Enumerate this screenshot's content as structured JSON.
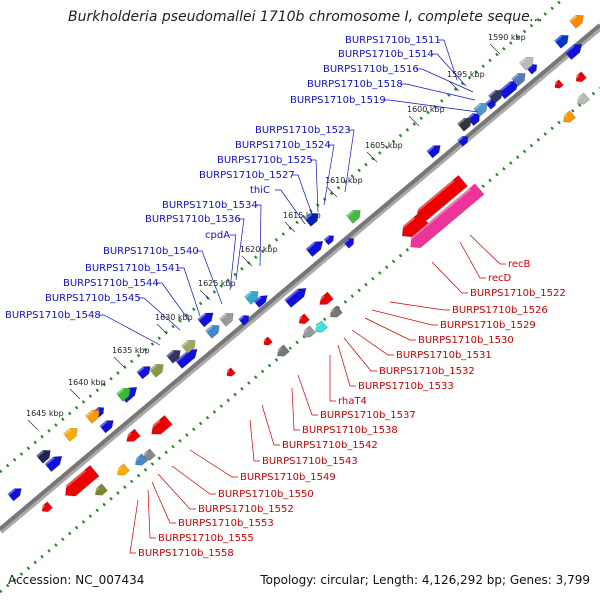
{
  "title": "Burkholderia pseudomallei 1710b chromosome I, complete seque...",
  "footer": {
    "accession": "Accession: NC_007434",
    "stats": "Topology: circular; Length: 4,126,292 bp; Genes: 3,799"
  },
  "colors": {
    "forward_label": "#1010cc",
    "reverse_label": "#cc0000",
    "backbone": "#777777",
    "tick": "#228822"
  },
  "kbp_marks": [
    "1590 kbp",
    "1595 kbp",
    "1600 kbp",
    "1605 kbp",
    "1610 kbp",
    "1615 kbp",
    "1620 kbp",
    "1625 kbp",
    "1630 kbp",
    "1635 kbp",
    "1640 kbp",
    "1645 kbp"
  ],
  "forward_genes": [
    "BURPS1710b_1511",
    "BURPS1710b_1514",
    "BURPS1710b_1516",
    "BURPS1710b_1518",
    "BURPS1710b_1519",
    "BURPS1710b_1523",
    "BURPS1710b_1524",
    "BURPS1710b_1525",
    "BURPS1710b_1527",
    "thiC",
    "BURPS1710b_1534",
    "BURPS1710b_1536",
    "cpdA",
    "BURPS1710b_1540",
    "BURPS1710b_1541",
    "BURPS1710b_1544",
    "BURPS1710b_1545",
    "BURPS1710b_1548"
  ],
  "reverse_genes": [
    "recB",
    "recD",
    "BURPS1710b_1522",
    "BURPS1710b_1526",
    "BURPS1710b_1529",
    "BURPS1710b_1530",
    "BURPS1710b_1531",
    "BURPS1710b_1532",
    "BURPS1710b_1533",
    "rhaT4",
    "BURPS1710b_1537",
    "BURPS1710b_1538",
    "BURPS1710b_1542",
    "BURPS1710b_1543",
    "BURPS1710b_1549",
    "BURPS1710b_1550",
    "BURPS1710b_1552",
    "BURPS1710b_1553",
    "BURPS1710b_1555",
    "BURPS1710b_1558"
  ]
}
